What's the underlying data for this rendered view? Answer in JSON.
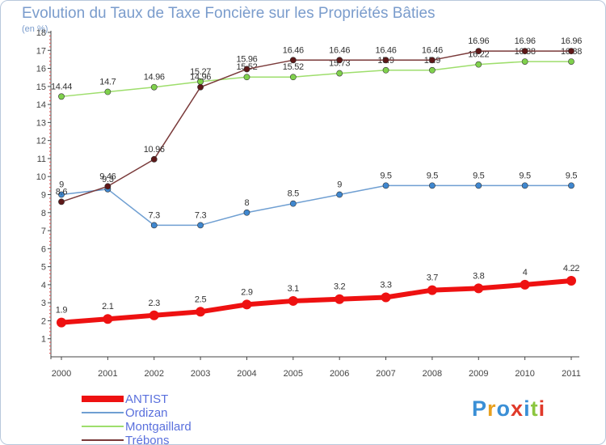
{
  "title": "Evolution du Taux de Taxe Foncière sur les Propriétés Bâties",
  "subtitle": "(en %)",
  "logo": {
    "text": "Proxiti",
    "letter_colors": [
      "#3a8fd6",
      "#e8a020",
      "#3a8fd6",
      "#e03a2a",
      "#3a8fd6",
      "#8cc63f",
      "#e03a2a"
    ]
  },
  "chart_data": {
    "type": "line",
    "title": "Evolution du Taux de Taxe Foncière sur les Propriétés Bâties",
    "ylabel": "(en %)",
    "xlabel": "",
    "categories": [
      "2000",
      "2001",
      "2002",
      "2003",
      "2004",
      "2005",
      "2006",
      "2007",
      "2008",
      "2009",
      "2010",
      "2011"
    ],
    "ylim": [
      0,
      18
    ],
    "yticks": [
      1,
      2,
      3,
      4,
      5,
      6,
      7,
      8,
      9,
      10,
      11,
      12,
      13,
      14,
      15,
      16,
      17,
      18
    ],
    "grid": false,
    "legend_position": "bottom-left",
    "series": [
      {
        "name": "ANTIST",
        "color": "#ee1111",
        "marker_color": "#ee1111",
        "emphasis": true,
        "values": [
          1.9,
          2.1,
          2.3,
          2.5,
          2.9,
          3.1,
          3.2,
          3.3,
          3.7,
          3.8,
          4,
          4.22
        ],
        "labels": [
          "1.9",
          "2.1",
          "2.3",
          "2.5",
          "2.9",
          "3.1",
          "3.2",
          "3.3",
          "3.7",
          "3.8",
          "4",
          "4.22"
        ]
      },
      {
        "name": "Ordizan",
        "color": "#6f9fd2",
        "marker_color": "#3f87cf",
        "values": [
          9,
          9.3,
          7.3,
          7.3,
          8,
          8.5,
          9,
          9.5,
          9.5,
          9.5,
          9.5,
          9.5
        ],
        "labels": [
          "9",
          "9.3",
          "7.3",
          "7.3",
          "8",
          "8.5",
          "9",
          "9.5",
          "9.5",
          "9.5",
          "9.5",
          "9.5"
        ]
      },
      {
        "name": "Montgaillard",
        "color": "#9ede6c",
        "marker_color": "#7fd14c",
        "values": [
          14.44,
          14.7,
          14.96,
          15.27,
          15.52,
          15.52,
          15.73,
          15.9,
          15.9,
          16.22,
          16.38,
          16.38
        ],
        "labels": [
          "14.44",
          "14.7",
          "14.96",
          "15.27",
          "15.52",
          "15.52",
          "15.73",
          "15.9",
          "15.9",
          "16.22",
          "16.38",
          "16.38"
        ]
      },
      {
        "name": "Trébons",
        "color": "#7a3a3a",
        "marker_color": "#5e1818",
        "values": [
          8.6,
          9.46,
          10.96,
          14.96,
          15.96,
          16.46,
          16.46,
          16.46,
          16.46,
          16.96,
          16.96,
          16.96
        ],
        "labels": [
          "8.6",
          "9.46",
          "10.96",
          "14.96",
          "15.96",
          "16.46",
          "16.46",
          "16.46",
          "16.46",
          "16.96",
          "16.96",
          "16.96"
        ]
      }
    ]
  }
}
